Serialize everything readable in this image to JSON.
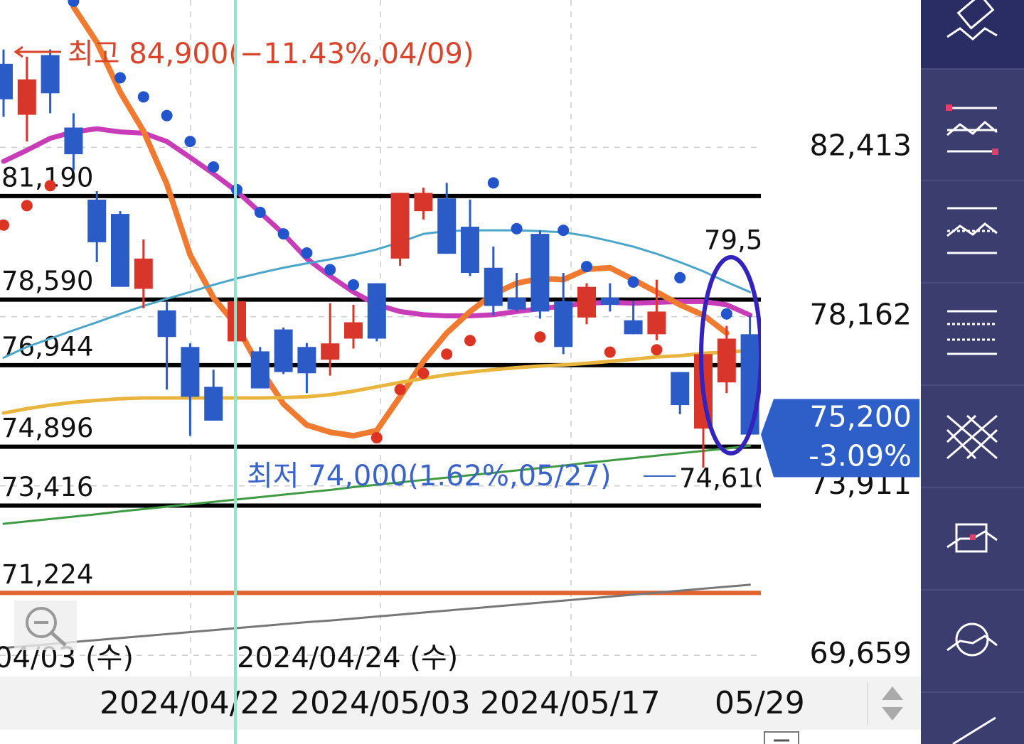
{
  "chart_data": {
    "type": "candlestick",
    "ylim": [
      69125,
      86113
    ],
    "yticks": [
      {
        "value": 82413,
        "label": "82,413"
      },
      {
        "value": 78162,
        "label": "78,162"
      },
      {
        "value": 73911,
        "label": "73,911"
      },
      {
        "value": 69659,
        "label": "69,659"
      }
    ],
    "grid": true,
    "up_color": "#d9362b",
    "down_color": "#2a5bc7",
    "candles": {
      "open": [
        84510,
        83230,
        84730,
        82910,
        81100,
        80740,
        78860,
        78320,
        77400,
        76400,
        77540,
        77290,
        77840,
        77400,
        77080,
        77610,
        79000,
        79620,
        80810,
        81130,
        80420,
        79390,
        78640,
        80240,
        78550,
        78140,
        78640,
        78070,
        77720,
        76770,
        75350,
        76510,
        77720
      ],
      "high": [
        84870,
        84690,
        84870,
        83270,
        81310,
        80810,
        80100,
        78550,
        77490,
        76830,
        78640,
        77400,
        77890,
        77500,
        78500,
        78460,
        79000,
        81270,
        81400,
        81520,
        81100,
        79920,
        79260,
        80330,
        79260,
        79000,
        79000,
        78550,
        79090,
        76770,
        77220,
        77930,
        78200
      ],
      "low": [
        83180,
        82560,
        83270,
        81840,
        79530,
        78910,
        78370,
        76330,
        75170,
        75550,
        77540,
        76360,
        76720,
        76240,
        76680,
        77360,
        77540,
        79440,
        80600,
        79740,
        79180,
        78200,
        78290,
        78110,
        77220,
        77970,
        78290,
        77720,
        77570,
        75710,
        74370,
        76240,
        75200
      ],
      "close": [
        83620,
        84120,
        83770,
        82240,
        80030,
        78910,
        79620,
        77650,
        76150,
        75550,
        78550,
        76360,
        76770,
        76740,
        77490,
        78020,
        77610,
        81270,
        81270,
        79740,
        79260,
        78430,
        78340,
        78290,
        77400,
        78910,
        78460,
        77720,
        78290,
        75940,
        77220,
        77610,
        75200
      ]
    },
    "series": [
      {
        "color": "#c93cb8",
        "width": 7,
        "values": [
          82060,
          82340,
          82640,
          82800,
          82880,
          82800,
          82770,
          82560,
          82160,
          81750,
          81310,
          80780,
          80240,
          79620,
          79180,
          78780,
          78460,
          78290,
          78210,
          78180,
          78180,
          78210,
          78290,
          78360,
          78430,
          78500,
          78520,
          78500,
          78520,
          78540,
          78540,
          78460,
          78200
        ]
      },
      {
        "color": "#f07a30",
        "width": 8,
        "values": [
          null,
          null,
          null,
          85940,
          85050,
          83800,
          82820,
          81490,
          79710,
          78640,
          77930,
          76860,
          75970,
          75440,
          75260,
          75170,
          75300,
          76150,
          77040,
          77750,
          78290,
          78730,
          79000,
          79120,
          79090,
          79350,
          79390,
          79090,
          78780,
          78460,
          78200,
          77750,
          null
        ]
      },
      {
        "color": "#4aa6c8",
        "width": 3,
        "values": [
          77130,
          77400,
          77610,
          77820,
          78020,
          78230,
          78430,
          78610,
          78780,
          78960,
          79120,
          79260,
          79390,
          79500,
          79600,
          79710,
          79850,
          80030,
          80240,
          80310,
          80330,
          80330,
          80330,
          80310,
          80280,
          80190,
          80060,
          79920,
          79740,
          79530,
          79300,
          79030,
          78780
        ]
      },
      {
        "color": "#eab53f",
        "width": 5,
        "values": [
          75740,
          75850,
          75940,
          76010,
          76060,
          76100,
          76120,
          76120,
          76120,
          76120,
          76120,
          76120,
          76130,
          76150,
          76200,
          76290,
          76400,
          76510,
          76610,
          76700,
          76770,
          76830,
          76880,
          76920,
          76950,
          76990,
          77040,
          77090,
          77150,
          77180,
          77240,
          77270,
          77310
        ]
      },
      {
        "color": "#3f9a44",
        "width": 3,
        "values": [
          72960,
          73020,
          73080,
          73140,
          73200,
          73270,
          73330,
          73390,
          73450,
          73510,
          73570,
          73630,
          73690,
          73750,
          73810,
          73880,
          73940,
          74000,
          74060,
          74120,
          74180,
          74240,
          74300,
          74360,
          74420,
          74490,
          74550,
          74610,
          74670,
          74730,
          74790,
          74850,
          74920
        ]
      },
      {
        "color": "#777777",
        "width": 3,
        "values": [
          69840,
          69890,
          69940,
          69990,
          70040,
          70090,
          70140,
          70190,
          70240,
          70290,
          70340,
          70390,
          70440,
          70490,
          70530,
          70580,
          70630,
          70680,
          70730,
          70780,
          70830,
          70880,
          70930,
          70980,
          71030,
          71080,
          71130,
          71180,
          71230,
          71280,
          71330,
          71380,
          71430
        ]
      }
    ],
    "sar": {
      "values": [
        80460,
        80950,
        81450,
        86080,
        null,
        84160,
        83680,
        83210,
        82560,
        81920,
        81350,
        80780,
        80240,
        79760,
        79340,
        78960,
        75120,
        76330,
        76740,
        77220,
        77560,
        81520,
        80370,
        77650,
        80330,
        79420,
        77270,
        79030,
        77330,
        79140,
        null,
        78230,
        null
      ],
      "colors": [
        "#dd3322",
        "#dd3322",
        "#dd3322",
        "#2255cc",
        null,
        "#2255cc",
        "#2255cc",
        "#2255cc",
        "#2255cc",
        "#2255cc",
        "#2255cc",
        "#2255cc",
        "#2255cc",
        "#2255cc",
        "#2255cc",
        "#2255cc",
        "#dd3322",
        "#dd3322",
        "#dd3322",
        "#dd3322",
        "#dd3322",
        "#2255cc",
        "#2255cc",
        "#dd3322",
        "#2255cc",
        "#2255cc",
        "#dd3322",
        "#2255cc",
        "#dd3322",
        "#2255cc",
        null,
        "#2255cc",
        null
      ]
    },
    "levels": [
      {
        "value": 81190,
        "label": "81,190",
        "color": "#000000"
      },
      {
        "value": 78590,
        "label": "78,590",
        "color": "#000000"
      },
      {
        "value": 76944,
        "label": "76,944",
        "color": "#000000"
      },
      {
        "value": 74896,
        "label": "74,896",
        "color": "#000000"
      },
      {
        "value": 73416,
        "label": "73,416",
        "color": "#000000"
      },
      {
        "value": 71224,
        "label": "71,224",
        "color": "#e0622e"
      }
    ],
    "high_annotation": "최고 84,900(−11.43%,04/09)",
    "low_annotation": "최저 74,000(1.62%,05/27)",
    "edge_labels": [
      "79,5",
      "74,610"
    ],
    "current_price": {
      "value": 75200,
      "label": "75,200",
      "change": "-3.09%"
    },
    "x_labels": [
      "04/03 (수)",
      "2024/04/24 (수)"
    ],
    "range_labels": [
      "2024/04/22",
      "2024/05/03",
      "2024/05/17",
      "05/29"
    ]
  }
}
